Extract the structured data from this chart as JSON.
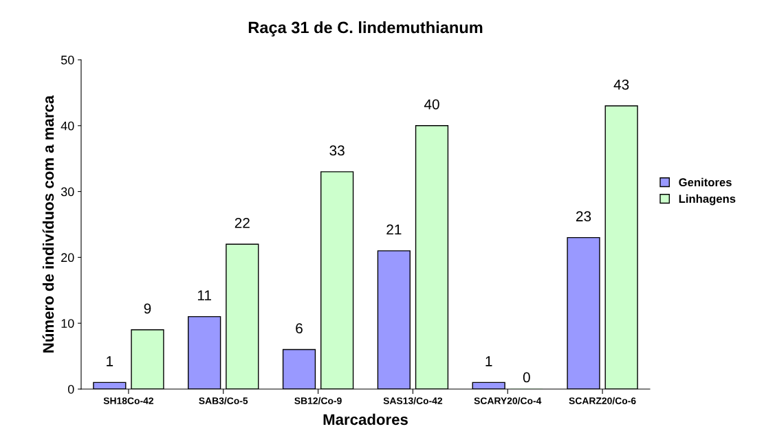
{
  "chart_data": {
    "type": "bar",
    "title": "Raça 31 de C. lindemuthianum",
    "xlabel": "Marcadores",
    "ylabel": "Número de indivíduos com a marca",
    "categories": [
      "SH18Co-42",
      "SAB3/Co-5",
      "SB12/Co-9",
      "SAS13/Co-42",
      "SCARY20/Co-4",
      "SCARZ20/Co-6"
    ],
    "series": [
      {
        "name": "Genitores",
        "color": "#9999ff",
        "values": [
          1,
          11,
          6,
          21,
          1,
          23
        ]
      },
      {
        "name": "Linhagens",
        "color": "#ccffcc",
        "values": [
          9,
          22,
          33,
          40,
          0,
          43
        ]
      }
    ],
    "ylim": [
      0,
      50
    ],
    "yticks": [
      0,
      10,
      20,
      30,
      40,
      50
    ],
    "grid": false,
    "legend": "right",
    "data_labels": true
  }
}
